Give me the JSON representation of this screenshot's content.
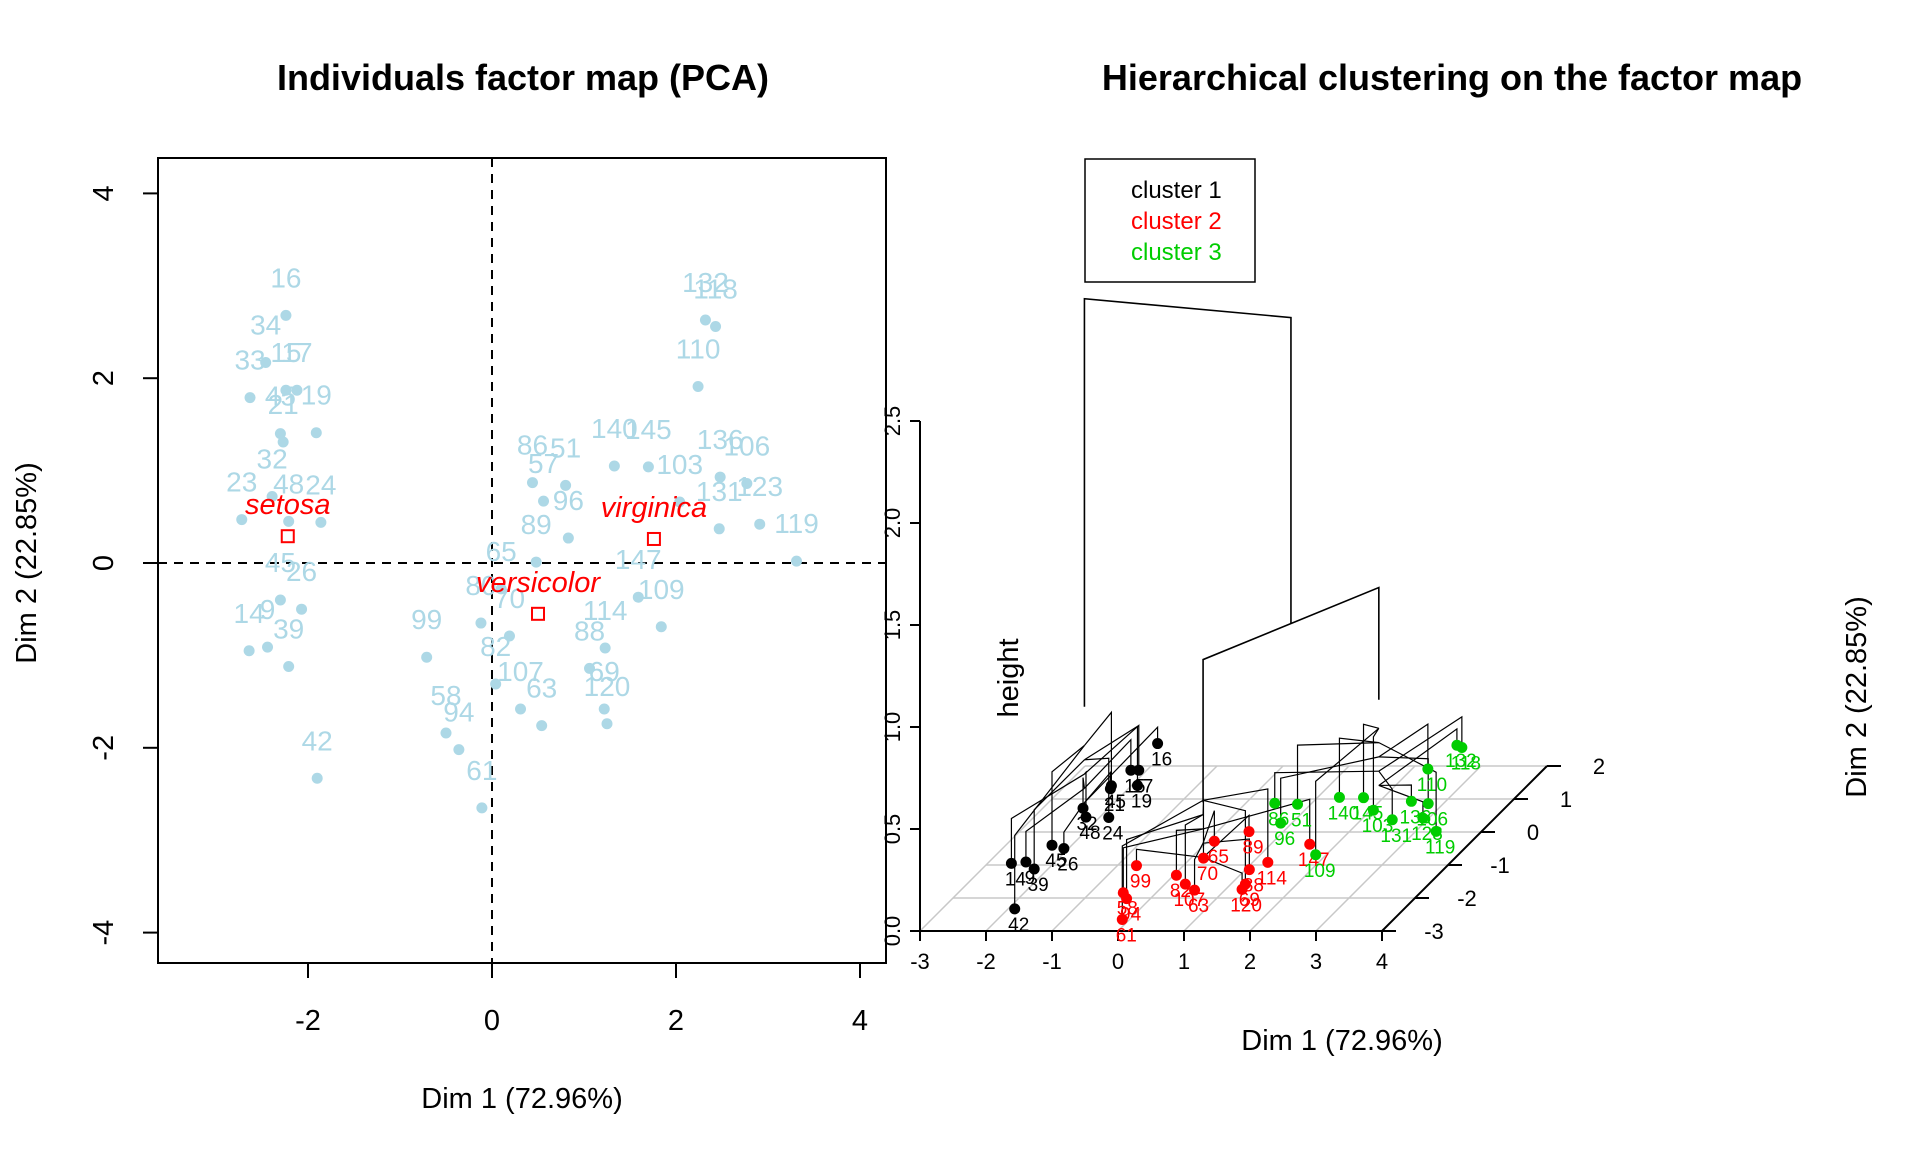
{
  "chart_data": [
    {
      "type": "scatter",
      "title": "Individuals factor map (PCA)",
      "xlabel": "Dim 1 (72.96%)",
      "ylabel": "Dim 2 (22.85%)",
      "xlim": [
        -3.6,
        4.3
      ],
      "ylim": [
        -4.4,
        4.4
      ],
      "xticks": [
        -2,
        0,
        2,
        4
      ],
      "yticks": [
        -4,
        -2,
        0,
        2,
        4
      ],
      "reference_lines": {
        "x": 0,
        "y": 0,
        "style": "dashed"
      },
      "point_color": "#add8e6",
      "centroid_color": "#ff0000",
      "points": [
        {
          "x": -2.24,
          "y": 2.68,
          "label": "16"
        },
        {
          "x": -2.46,
          "y": 2.17,
          "label": "34"
        },
        {
          "x": -2.63,
          "y": 1.79,
          "label": "33"
        },
        {
          "x": -2.24,
          "y": 1.87,
          "label": "15"
        },
        {
          "x": -2.12,
          "y": 1.87,
          "label": "17"
        },
        {
          "x": -1.91,
          "y": 1.41,
          "label": "19"
        },
        {
          "x": -2.3,
          "y": 1.4,
          "label": "45"
        },
        {
          "x": -2.27,
          "y": 1.31,
          "label": "21"
        },
        {
          "x": -2.72,
          "y": 0.47,
          "label": "23"
        },
        {
          "x": -2.39,
          "y": 0.72,
          "label": "32"
        },
        {
          "x": -1.86,
          "y": 0.44,
          "label": "24"
        },
        {
          "x": -2.21,
          "y": 0.45,
          "label": "48"
        },
        {
          "x": -2.3,
          "y": -0.4,
          "label": "45"
        },
        {
          "x": -2.64,
          "y": -0.95,
          "label": "14"
        },
        {
          "x": -2.44,
          "y": -0.91,
          "label": "9"
        },
        {
          "x": -2.21,
          "y": -1.12,
          "label": "39"
        },
        {
          "x": -2.07,
          "y": -0.5,
          "label": "26"
        },
        {
          "x": -1.9,
          "y": -2.33,
          "label": "42"
        },
        {
          "x": -0.71,
          "y": -1.02,
          "label": "99"
        },
        {
          "x": -0.5,
          "y": -1.84,
          "label": "58"
        },
        {
          "x": -0.36,
          "y": -2.02,
          "label": "94"
        },
        {
          "x": -0.11,
          "y": -2.65,
          "label": "61"
        },
        {
          "x": 0.44,
          "y": 0.87,
          "label": "86"
        },
        {
          "x": 0.56,
          "y": 0.67,
          "label": "57"
        },
        {
          "x": 0.8,
          "y": 0.84,
          "label": "51"
        },
        {
          "x": 1.33,
          "y": 1.05,
          "label": "140"
        },
        {
          "x": 1.7,
          "y": 1.04,
          "label": "145"
        },
        {
          "x": 2.48,
          "y": 0.93,
          "label": "136"
        },
        {
          "x": 2.77,
          "y": 0.86,
          "label": "106"
        },
        {
          "x": 2.04,
          "y": 0.66,
          "label": "103"
        },
        {
          "x": 2.47,
          "y": 0.37,
          "label": "131"
        },
        {
          "x": 2.91,
          "y": 0.42,
          "label": "123"
        },
        {
          "x": 3.31,
          "y": 0.02,
          "label": "119"
        },
        {
          "x": 2.32,
          "y": 2.63,
          "label": "132"
        },
        {
          "x": 2.43,
          "y": 2.56,
          "label": "118"
        },
        {
          "x": 2.24,
          "y": 1.91,
          "label": "110"
        },
        {
          "x": 1.84,
          "y": -0.69,
          "label": "109"
        },
        {
          "x": 1.59,
          "y": -0.37,
          "label": "147"
        },
        {
          "x": 1.23,
          "y": -0.92,
          "label": "114"
        },
        {
          "x": 1.06,
          "y": -1.14,
          "label": "88"
        },
        {
          "x": 1.22,
          "y": -1.58,
          "label": "69"
        },
        {
          "x": 1.25,
          "y": -1.74,
          "label": "120"
        },
        {
          "x": 0.31,
          "y": -1.58,
          "label": "107"
        },
        {
          "x": 0.54,
          "y": -1.76,
          "label": "63"
        },
        {
          "x": 0.04,
          "y": -1.31,
          "label": "82"
        },
        {
          "x": -0.12,
          "y": -0.65,
          "label": "80"
        },
        {
          "x": 0.19,
          "y": -0.79,
          "label": "70"
        },
        {
          "x": 0.1,
          "y": -0.28,
          "label": "65"
        },
        {
          "x": 0.83,
          "y": 0.27,
          "label": "96"
        },
        {
          "x": 0.48,
          "y": 0.01,
          "label": "89"
        }
      ],
      "centroids": [
        {
          "name": "setosa",
          "x": -2.22,
          "y": 0.29
        },
        {
          "name": "versicolor",
          "x": 0.5,
          "y": -0.55
        },
        {
          "name": "virginica",
          "x": 1.76,
          "y": 0.26
        }
      ]
    },
    {
      "type": "scatter",
      "title": "Hierarchical clustering on the factor map",
      "xlabel": "Dim 1 (72.96%)",
      "ylabel": "Dim 2 (22.85%)",
      "zlabel": "height",
      "xlim": [
        -3,
        4
      ],
      "ylim": [
        -3,
        2
      ],
      "zlim": [
        0,
        2.5
      ],
      "xticks": [
        -3,
        -2,
        -1,
        0,
        1,
        2,
        3,
        4
      ],
      "yticks": [
        -3,
        -2,
        -1,
        0,
        1,
        2
      ],
      "zticks": [
        "0.0",
        "0.5",
        "1.0",
        "1.5",
        "2.0",
        "2.5"
      ],
      "legend": {
        "position": "top-left",
        "entries": [
          {
            "name": "cluster 1",
            "color": "#000000"
          },
          {
            "name": "cluster 2",
            "color": "#ff0000"
          },
          {
            "name": "cluster 3",
            "color": "#00cd00"
          }
        ]
      },
      "merge_heights": {
        "root": 2.55,
        "clusters_2_3": 1.05,
        "cluster_1": 0.55
      },
      "clusters": [
        {
          "name": "cluster 1",
          "points": [
            {
              "x": -2.24,
              "y": 2.68,
              "label": "16"
            },
            {
              "x": -2.24,
              "y": 1.87,
              "label": "15"
            },
            {
              "x": -2.12,
              "y": 1.87,
              "label": "17"
            },
            {
              "x": -1.91,
              "y": 1.41,
              "label": "19"
            },
            {
              "x": -2.3,
              "y": 1.4,
              "label": "45"
            },
            {
              "x": -2.21,
              "y": 0.45,
              "label": "48"
            },
            {
              "x": -2.27,
              "y": 1.31,
              "label": "21"
            },
            {
              "x": -2.39,
              "y": 0.72,
              "label": "32"
            },
            {
              "x": -1.86,
              "y": 0.44,
              "label": "24"
            },
            {
              "x": -2.64,
              "y": -0.95,
              "label": "14"
            },
            {
              "x": -2.44,
              "y": -0.91,
              "label": "9"
            },
            {
              "x": -2.21,
              "y": -1.12,
              "label": "39"
            },
            {
              "x": -2.07,
              "y": -0.5,
              "label": "26"
            },
            {
              "x": -2.3,
              "y": -0.4,
              "label": "45"
            },
            {
              "x": -1.9,
              "y": -2.33,
              "label": "42"
            }
          ]
        },
        {
          "name": "cluster 2",
          "points": [
            {
              "x": -0.11,
              "y": -2.65,
              "label": "61"
            },
            {
              "x": -0.36,
              "y": -2.02,
              "label": "94"
            },
            {
              "x": -0.5,
              "y": -1.84,
              "label": "58"
            },
            {
              "x": -0.71,
              "y": -1.02,
              "label": "99"
            },
            {
              "x": 0.04,
              "y": -1.31,
              "label": "82"
            },
            {
              "x": 0.54,
              "y": -1.76,
              "label": "63"
            },
            {
              "x": 0.31,
              "y": -1.58,
              "label": "107"
            },
            {
              "x": 1.06,
              "y": -1.14,
              "label": "88"
            },
            {
              "x": 1.25,
              "y": -1.74,
              "label": "120"
            },
            {
              "x": 1.22,
              "y": -1.58,
              "label": "69"
            },
            {
              "x": 1.23,
              "y": -0.92,
              "label": "114"
            },
            {
              "x": 1.59,
              "y": -0.37,
              "label": "147"
            },
            {
              "x": 0.19,
              "y": -0.79,
              "label": "70"
            },
            {
              "x": 0.1,
              "y": -0.28,
              "label": "65"
            },
            {
              "x": 0.48,
              "y": 0.01,
              "label": "89"
            }
          ]
        },
        {
          "name": "cluster 3",
          "points": [
            {
              "x": 2.32,
              "y": 2.63,
              "label": "132"
            },
            {
              "x": 2.43,
              "y": 2.56,
              "label": "118"
            },
            {
              "x": 2.24,
              "y": 1.91,
              "label": "110"
            },
            {
              "x": 2.48,
              "y": 0.93,
              "label": "136"
            },
            {
              "x": 2.77,
              "y": 0.86,
              "label": "106"
            },
            {
              "x": 2.91,
              "y": 0.42,
              "label": "123"
            },
            {
              "x": 3.31,
              "y": 0.02,
              "label": "119"
            },
            {
              "x": 2.47,
              "y": 0.37,
              "label": "131"
            },
            {
              "x": 2.04,
              "y": 0.66,
              "label": "103"
            },
            {
              "x": 1.84,
              "y": -0.69,
              "label": "109"
            },
            {
              "x": 1.7,
              "y": 1.04,
              "label": "145"
            },
            {
              "x": 1.33,
              "y": 1.05,
              "label": "140"
            },
            {
              "x": 0.8,
              "y": 0.84,
              "label": "51"
            },
            {
              "x": 0.44,
              "y": 0.87,
              "label": "86"
            },
            {
              "x": 0.83,
              "y": 0.27,
              "label": "96"
            }
          ]
        }
      ]
    }
  ]
}
